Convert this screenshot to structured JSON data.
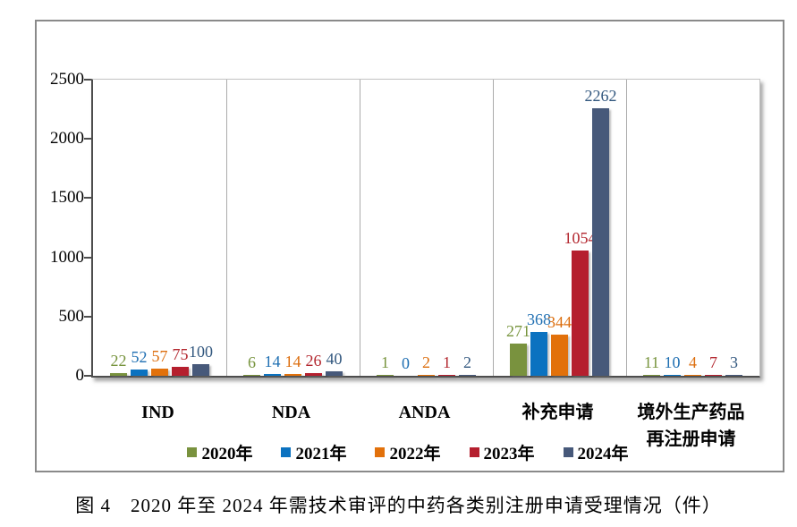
{
  "caption": "图 4　2020 年至 2024 年需技术审评的中药各类别注册申请受理情况（件）",
  "chart_data": {
    "type": "bar",
    "title": "",
    "xlabel": "",
    "ylabel": "",
    "categories": [
      "IND",
      "NDA",
      "ANDA",
      "补充申请",
      "境外生产药品再注册申请"
    ],
    "category_display": [
      [
        "IND"
      ],
      [
        "NDA"
      ],
      [
        "ANDA"
      ],
      [
        "补充申请"
      ],
      [
        "境外生产药品",
        "再注册申请"
      ]
    ],
    "series": [
      {
        "name": "2020年",
        "color": "#79923E",
        "label_color": "#77943D",
        "values": [
          22,
          6,
          1,
          271,
          11
        ]
      },
      {
        "name": "2021年",
        "color": "#0B72C0",
        "label_color": "#1F6FB2",
        "values": [
          52,
          14,
          0,
          368,
          10
        ]
      },
      {
        "name": "2022年",
        "color": "#E2710B",
        "label_color": "#DC6E0E",
        "values": [
          57,
          14,
          2,
          344,
          4
        ]
      },
      {
        "name": "2023年",
        "color": "#B51F2E",
        "label_color": "#B3272F",
        "values": [
          75,
          26,
          1,
          1054,
          7
        ]
      },
      {
        "name": "2024年",
        "color": "#47597A",
        "label_color": "#33587F",
        "values": [
          100,
          40,
          2,
          2262,
          3
        ]
      }
    ],
    "ylim": [
      0,
      2500
    ],
    "yticks": [
      0,
      500,
      1000,
      1500,
      2000,
      2500
    ],
    "grid": "vertical-category-dividers-only",
    "legend_position": "bottom",
    "data_labels": true
  }
}
